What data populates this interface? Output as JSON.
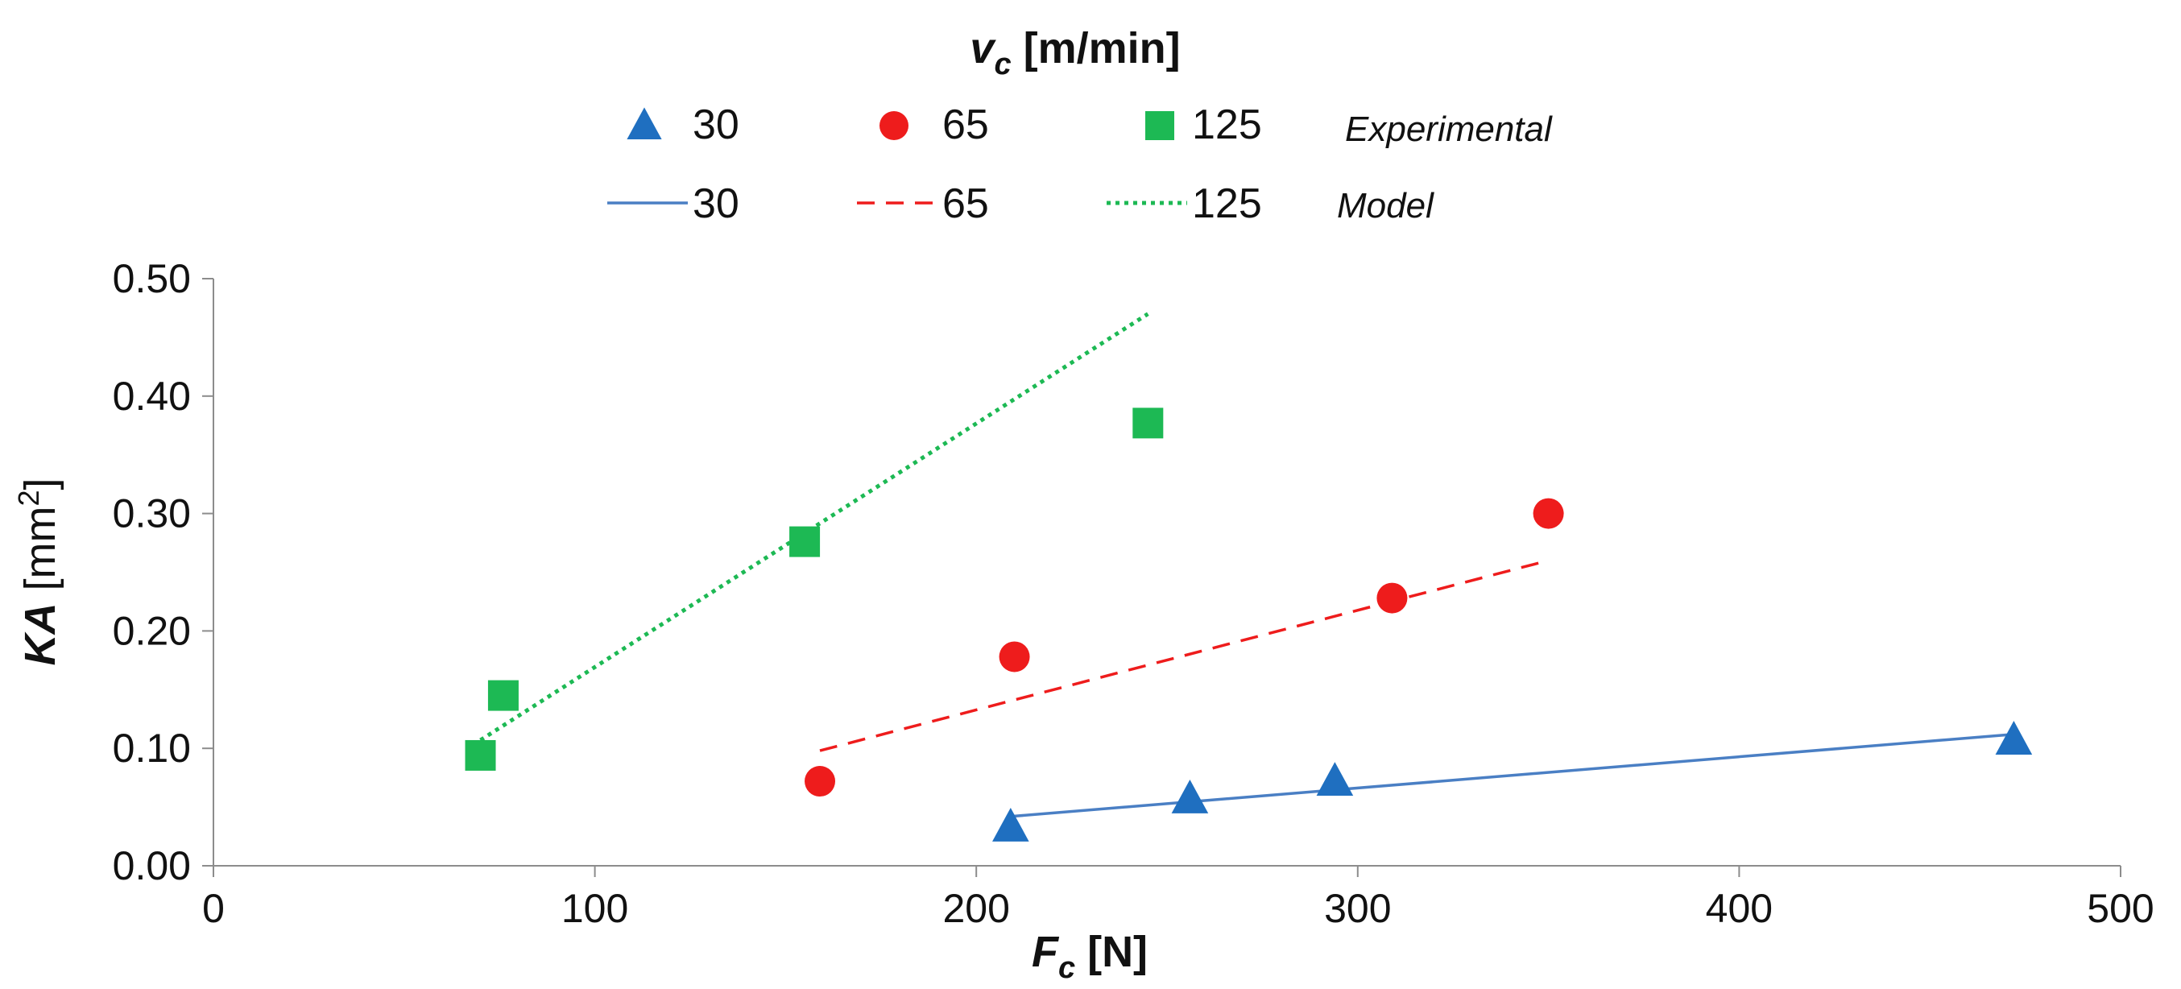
{
  "chart_data": {
    "type": "scatter",
    "legend_title": {
      "main": "v",
      "sub": "c",
      "unit": " [m/min]"
    },
    "legend_rows": {
      "experimental": "Experimental",
      "model": "Model"
    },
    "xlabel": {
      "main": "F",
      "sub": "c",
      "unit": " [N]"
    },
    "ylabel": {
      "main": "KA",
      "unit": " [mm",
      "sup": "2",
      "close": "]"
    },
    "xlim": [
      0,
      500
    ],
    "ylim": [
      0,
      0.5
    ],
    "x_ticks": [
      "0",
      "100",
      "200",
      "300",
      "400",
      "500"
    ],
    "y_ticks": [
      "0.00",
      "0.10",
      "0.20",
      "0.30",
      "0.40",
      "0.50"
    ],
    "grid": false,
    "legend_position": "top",
    "experimental": [
      {
        "name": "30",
        "marker": "triangle",
        "color": "#1f6fc0",
        "points": [
          [
            209,
            0.033
          ],
          [
            256,
            0.057
          ],
          [
            294,
            0.072
          ],
          [
            472,
            0.107
          ]
        ]
      },
      {
        "name": "65",
        "marker": "circle",
        "color": "#ee1c1c",
        "points": [
          [
            159,
            0.072
          ],
          [
            210,
            0.178
          ],
          [
            309,
            0.228
          ],
          [
            350,
            0.3
          ]
        ]
      },
      {
        "name": "125",
        "marker": "square",
        "color": "#1db954",
        "points": [
          [
            70,
            0.094
          ],
          [
            76,
            0.145
          ],
          [
            155,
            0.276
          ],
          [
            245,
            0.377
          ]
        ]
      }
    ],
    "model": [
      {
        "name": "30",
        "line": "solid",
        "color": "#4a7fc4",
        "points": [
          [
            209,
            0.042
          ],
          [
            472,
            0.112
          ]
        ]
      },
      {
        "name": "65",
        "line": "dashed",
        "color": "#ee1c1c",
        "points": [
          [
            159,
            0.098
          ],
          [
            350,
            0.26
          ]
        ]
      },
      {
        "name": "125",
        "line": "dotted",
        "color": "#1db954",
        "points": [
          [
            70,
            0.107
          ],
          [
            245,
            0.47
          ]
        ]
      }
    ]
  }
}
